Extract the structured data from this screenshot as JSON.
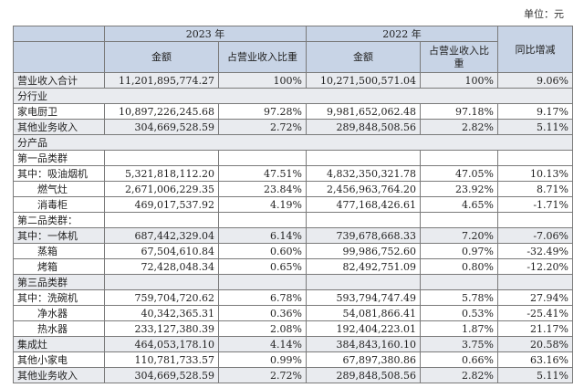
{
  "unit_label": "单位：元",
  "header": {
    "year_2023": "2023 年",
    "year_2022": "2022 年",
    "amount": "金额",
    "share": "占营业收入比重",
    "yoy": "同比增减"
  },
  "rows": [
    {
      "label": "营业收入合计",
      "a23": "11,201,895,774.27",
      "p23": "100%",
      "a22": "10,271,500,571.04",
      "p22": "100%",
      "yoy": "9.06%"
    },
    {
      "section": "分行业"
    },
    {
      "label": "家电厨卫",
      "a23": "10,897,226,245.68",
      "p23": "97.28%",
      "a22": "9,981,652,062.48",
      "p22": "97.18%",
      "yoy": "9.17%"
    },
    {
      "label": "其他业务收入",
      "a23": "304,669,528.59",
      "p23": "2.72%",
      "a22": "289,848,508.56",
      "p22": "2.82%",
      "yoy": "5.11%"
    },
    {
      "section": "分产品"
    },
    {
      "label": "第一品类群"
    },
    {
      "label": "其中：吸油烟机",
      "a23": "5,321,818,112.20",
      "p23": "47.51%",
      "a22": "4,832,350,321.78",
      "p22": "47.05%",
      "yoy": "10.13%"
    },
    {
      "label": "燃气灶",
      "indent": true,
      "a23": "2,671,006,229.35",
      "p23": "23.84%",
      "a22": "2,456,963,764.20",
      "p22": "23.92%",
      "yoy": "8.71%"
    },
    {
      "label": "消毒柜",
      "indent": true,
      "a23": "469,017,537.92",
      "p23": "4.19%",
      "a22": "477,168,426.61",
      "p22": "4.65%",
      "yoy": "-1.71%"
    },
    {
      "label": "第二品类群："
    },
    {
      "label": "其中：一体机",
      "a23": "687,442,329.04",
      "p23": "6.14%",
      "a22": "739,678,668.33",
      "p22": "7.20%",
      "yoy": "-7.06%"
    },
    {
      "label": "蒸箱",
      "indent": true,
      "a23": "67,504,610.84",
      "p23": "0.60%",
      "a22": "99,986,752.60",
      "p22": "0.97%",
      "yoy": "-32.49%"
    },
    {
      "label": "烤箱",
      "indent": true,
      "a23": "72,428,048.34",
      "p23": "0.65%",
      "a22": "82,492,751.09",
      "p22": "0.80%",
      "yoy": "-12.20%"
    },
    {
      "label": "第三品类群"
    },
    {
      "label": "其中：洗碗机",
      "a23": "759,704,720.62",
      "p23": "6.78%",
      "a22": "593,794,747.49",
      "p22": "5.78%",
      "yoy": "27.94%"
    },
    {
      "label": "净水器",
      "indent": true,
      "a23": "40,342,365.31",
      "p23": "0.36%",
      "a22": "54,081,866.41",
      "p22": "0.53%",
      "yoy": "-25.41%"
    },
    {
      "label": "热水器",
      "indent": true,
      "a23": "233,127,380.39",
      "p23": "2.08%",
      "a22": "192,404,223.01",
      "p22": "1.87%",
      "yoy": "21.17%"
    },
    {
      "label": "集成灶",
      "a23": "464,053,178.10",
      "p23": "4.14%",
      "a22": "384,843,160.10",
      "p22": "3.75%",
      "yoy": "20.58%"
    },
    {
      "label": "其他小家电",
      "a23": "110,781,733.57",
      "p23": "0.99%",
      "a22": "67,897,380.86",
      "p22": "0.66%",
      "yoy": "63.16%"
    },
    {
      "label": "其他业务收入",
      "a23": "304,669,528.59",
      "p23": "2.72%",
      "a22": "289,848,508.56",
      "p22": "2.82%",
      "yoy": "5.11%"
    }
  ]
}
